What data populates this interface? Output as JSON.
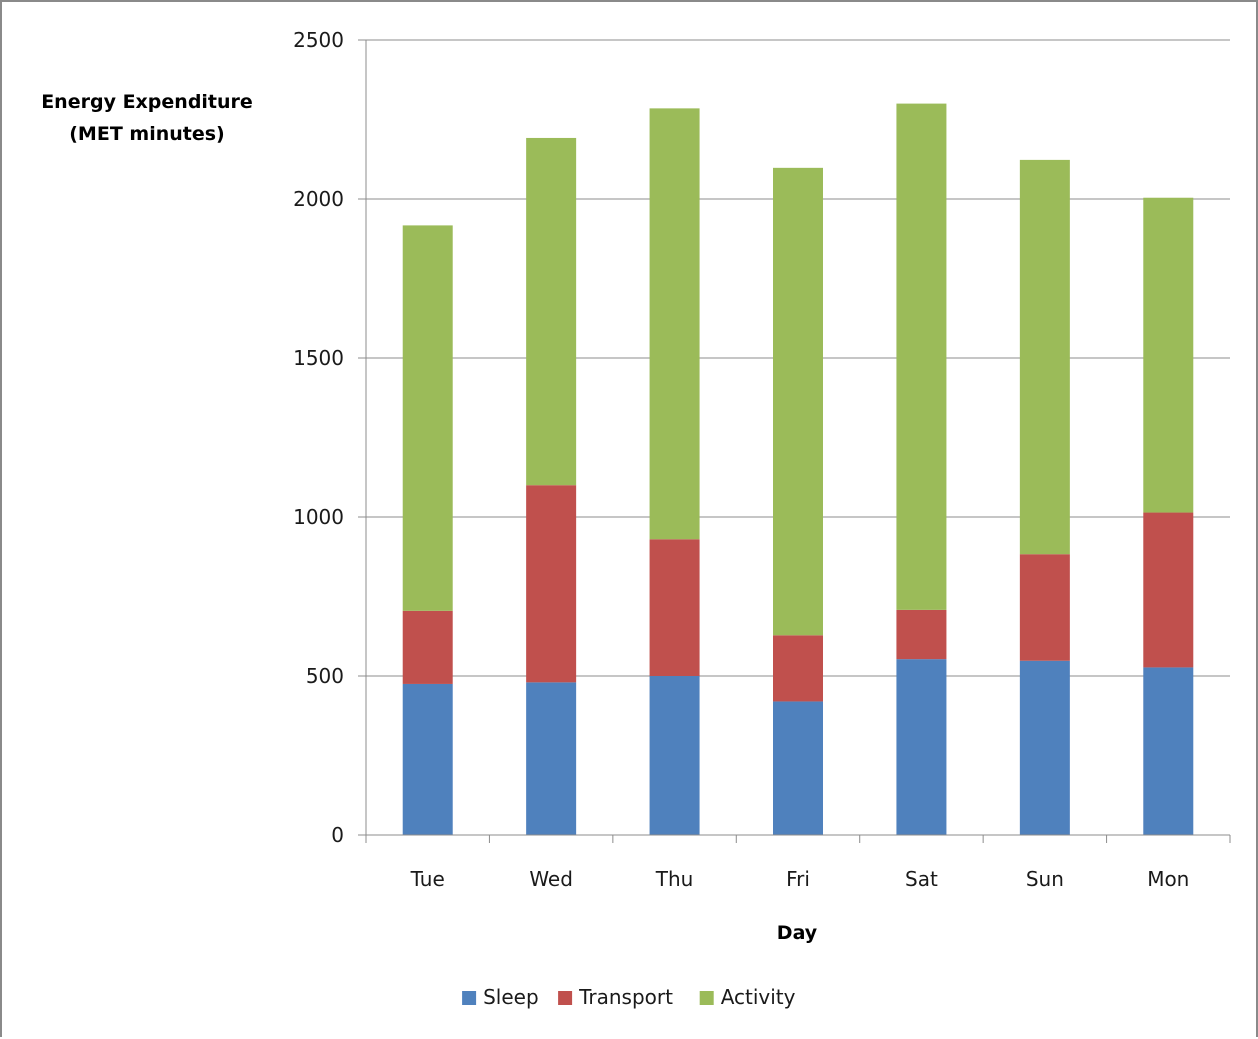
{
  "chart_data": {
    "type": "bar",
    "stacked": true,
    "title": "",
    "ylabel_lines": [
      "Energy Expenditure",
      "(MET minutes)"
    ],
    "xlabel": "Day",
    "ylim": [
      0,
      2500
    ],
    "yticks": [
      0,
      500,
      1000,
      1500,
      2000,
      2500
    ],
    "grid": "horizontal",
    "legend_position": "bottom",
    "categories": [
      "Tue",
      "Wed",
      "Thu",
      "Fri",
      "Sat",
      "Sun",
      "Mon"
    ],
    "series": [
      {
        "name": "Sleep",
        "color": "#4f81bd",
        "values": [
          475,
          480,
          500,
          420,
          553,
          548,
          527
        ]
      },
      {
        "name": "Transport",
        "color": "#c0504d",
        "values": [
          230,
          620,
          430,
          208,
          155,
          335,
          487
        ]
      },
      {
        "name": "Activity",
        "color": "#9bbb59",
        "values": [
          1212,
          1092,
          1355,
          1470,
          1592,
          1240,
          990
        ]
      }
    ]
  }
}
